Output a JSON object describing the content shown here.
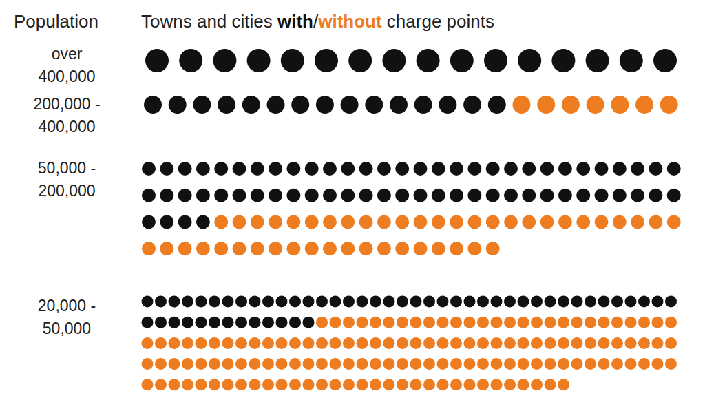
{
  "chart_data": {
    "type": "unit",
    "title": "Towns and cities with/without charge points",
    "y_label": "Population",
    "categories": [
      "over 400,000",
      "200,000 - 400,000",
      "50,000 - 200,000",
      "20,000 - 50,000"
    ],
    "series": [
      {
        "name": "with",
        "color": "#111111",
        "values": [
          16,
          15,
          64,
          53
        ]
      },
      {
        "name": "without",
        "color": "#ee7d22",
        "values": [
          0,
          7,
          46,
          139
        ]
      }
    ],
    "tick_labels": false
  }
}
